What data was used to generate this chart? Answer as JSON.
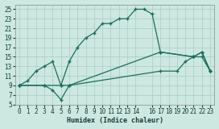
{
  "xlabel": "Humidex (Indice chaleur)",
  "bg_color": "#cce8e0",
  "grid_color": "#b0d0c8",
  "line_color": "#1a6e60",
  "xlim": [
    -0.5,
    23.5
  ],
  "ylim": [
    5,
    26
  ],
  "xticks": [
    0,
    1,
    2,
    3,
    4,
    5,
    6,
    7,
    8,
    9,
    10,
    11,
    12,
    13,
    14,
    16,
    17,
    18,
    19,
    20,
    21,
    22,
    23
  ],
  "xtick_labels": [
    "0",
    "1",
    "2",
    "3",
    "4",
    "5",
    "6",
    "7",
    "8",
    "9",
    "10",
    "11",
    "12",
    "13",
    "14",
    "16",
    "17",
    "18",
    "19",
    "20",
    "21",
    "22",
    "23"
  ],
  "yticks": [
    5,
    7,
    9,
    11,
    13,
    15,
    17,
    19,
    21,
    23,
    25
  ],
  "line1_x": [
    0,
    1,
    2,
    3,
    4,
    5,
    6,
    7,
    8,
    9,
    10,
    11,
    12,
    13,
    14,
    15,
    16,
    17,
    21,
    22,
    23
  ],
  "line1_y": [
    9,
    10,
    12,
    13,
    14,
    9,
    14,
    17,
    19,
    20,
    22,
    22,
    23,
    23,
    25,
    25,
    24,
    16,
    15,
    16,
    12
  ],
  "line2_x": [
    0,
    3,
    4,
    5,
    6,
    17,
    21,
    22,
    23
  ],
  "line2_y": [
    9,
    9,
    8,
    6,
    9,
    16,
    15,
    16,
    12
  ],
  "line3_x": [
    0,
    3,
    5,
    6,
    17,
    19,
    20,
    21,
    22,
    23
  ],
  "line3_y": [
    9,
    9,
    9,
    9,
    12,
    12,
    14,
    15,
    15,
    12
  ]
}
